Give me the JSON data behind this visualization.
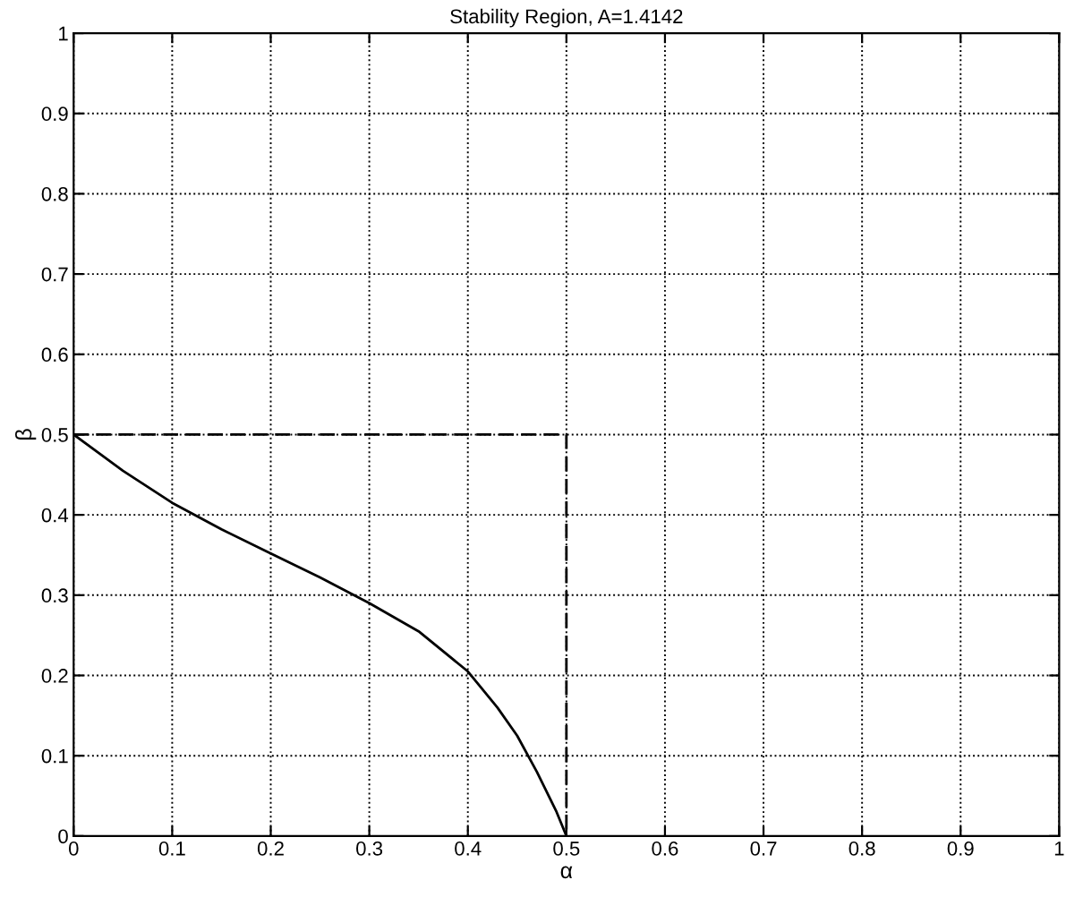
{
  "chart_data": {
    "type": "line",
    "title": "Stability Region, A=1.4142",
    "xlabel": "α",
    "ylabel": "β",
    "xlim": [
      0,
      1
    ],
    "ylim": [
      0,
      1
    ],
    "xticks": [
      0,
      0.1,
      0.2,
      0.3,
      0.4,
      0.5,
      0.6,
      0.7,
      0.8,
      0.9,
      1
    ],
    "yticks": [
      0,
      0.1,
      0.2,
      0.3,
      0.4,
      0.5,
      0.6,
      0.7,
      0.8,
      0.9,
      1
    ],
    "grid": true,
    "marker": "none",
    "series": [
      {
        "color": "#000000",
        "line_style": "solid",
        "x": [
          0,
          0.05,
          0.1,
          0.15,
          0.2,
          0.25,
          0.3,
          0.35,
          0.4,
          0.43,
          0.45,
          0.47,
          0.49,
          0.5
        ],
        "values": [
          0.5,
          0.455,
          0.415,
          0.382,
          0.352,
          0.322,
          0.29,
          0.255,
          0.205,
          0.16,
          0.125,
          0.08,
          0.03,
          0
        ]
      },
      {
        "color": "#000000",
        "line_style": "dashed",
        "x": [
          0,
          0.5,
          0.5
        ],
        "values": [
          0.5,
          0.5,
          0
        ]
      }
    ]
  }
}
